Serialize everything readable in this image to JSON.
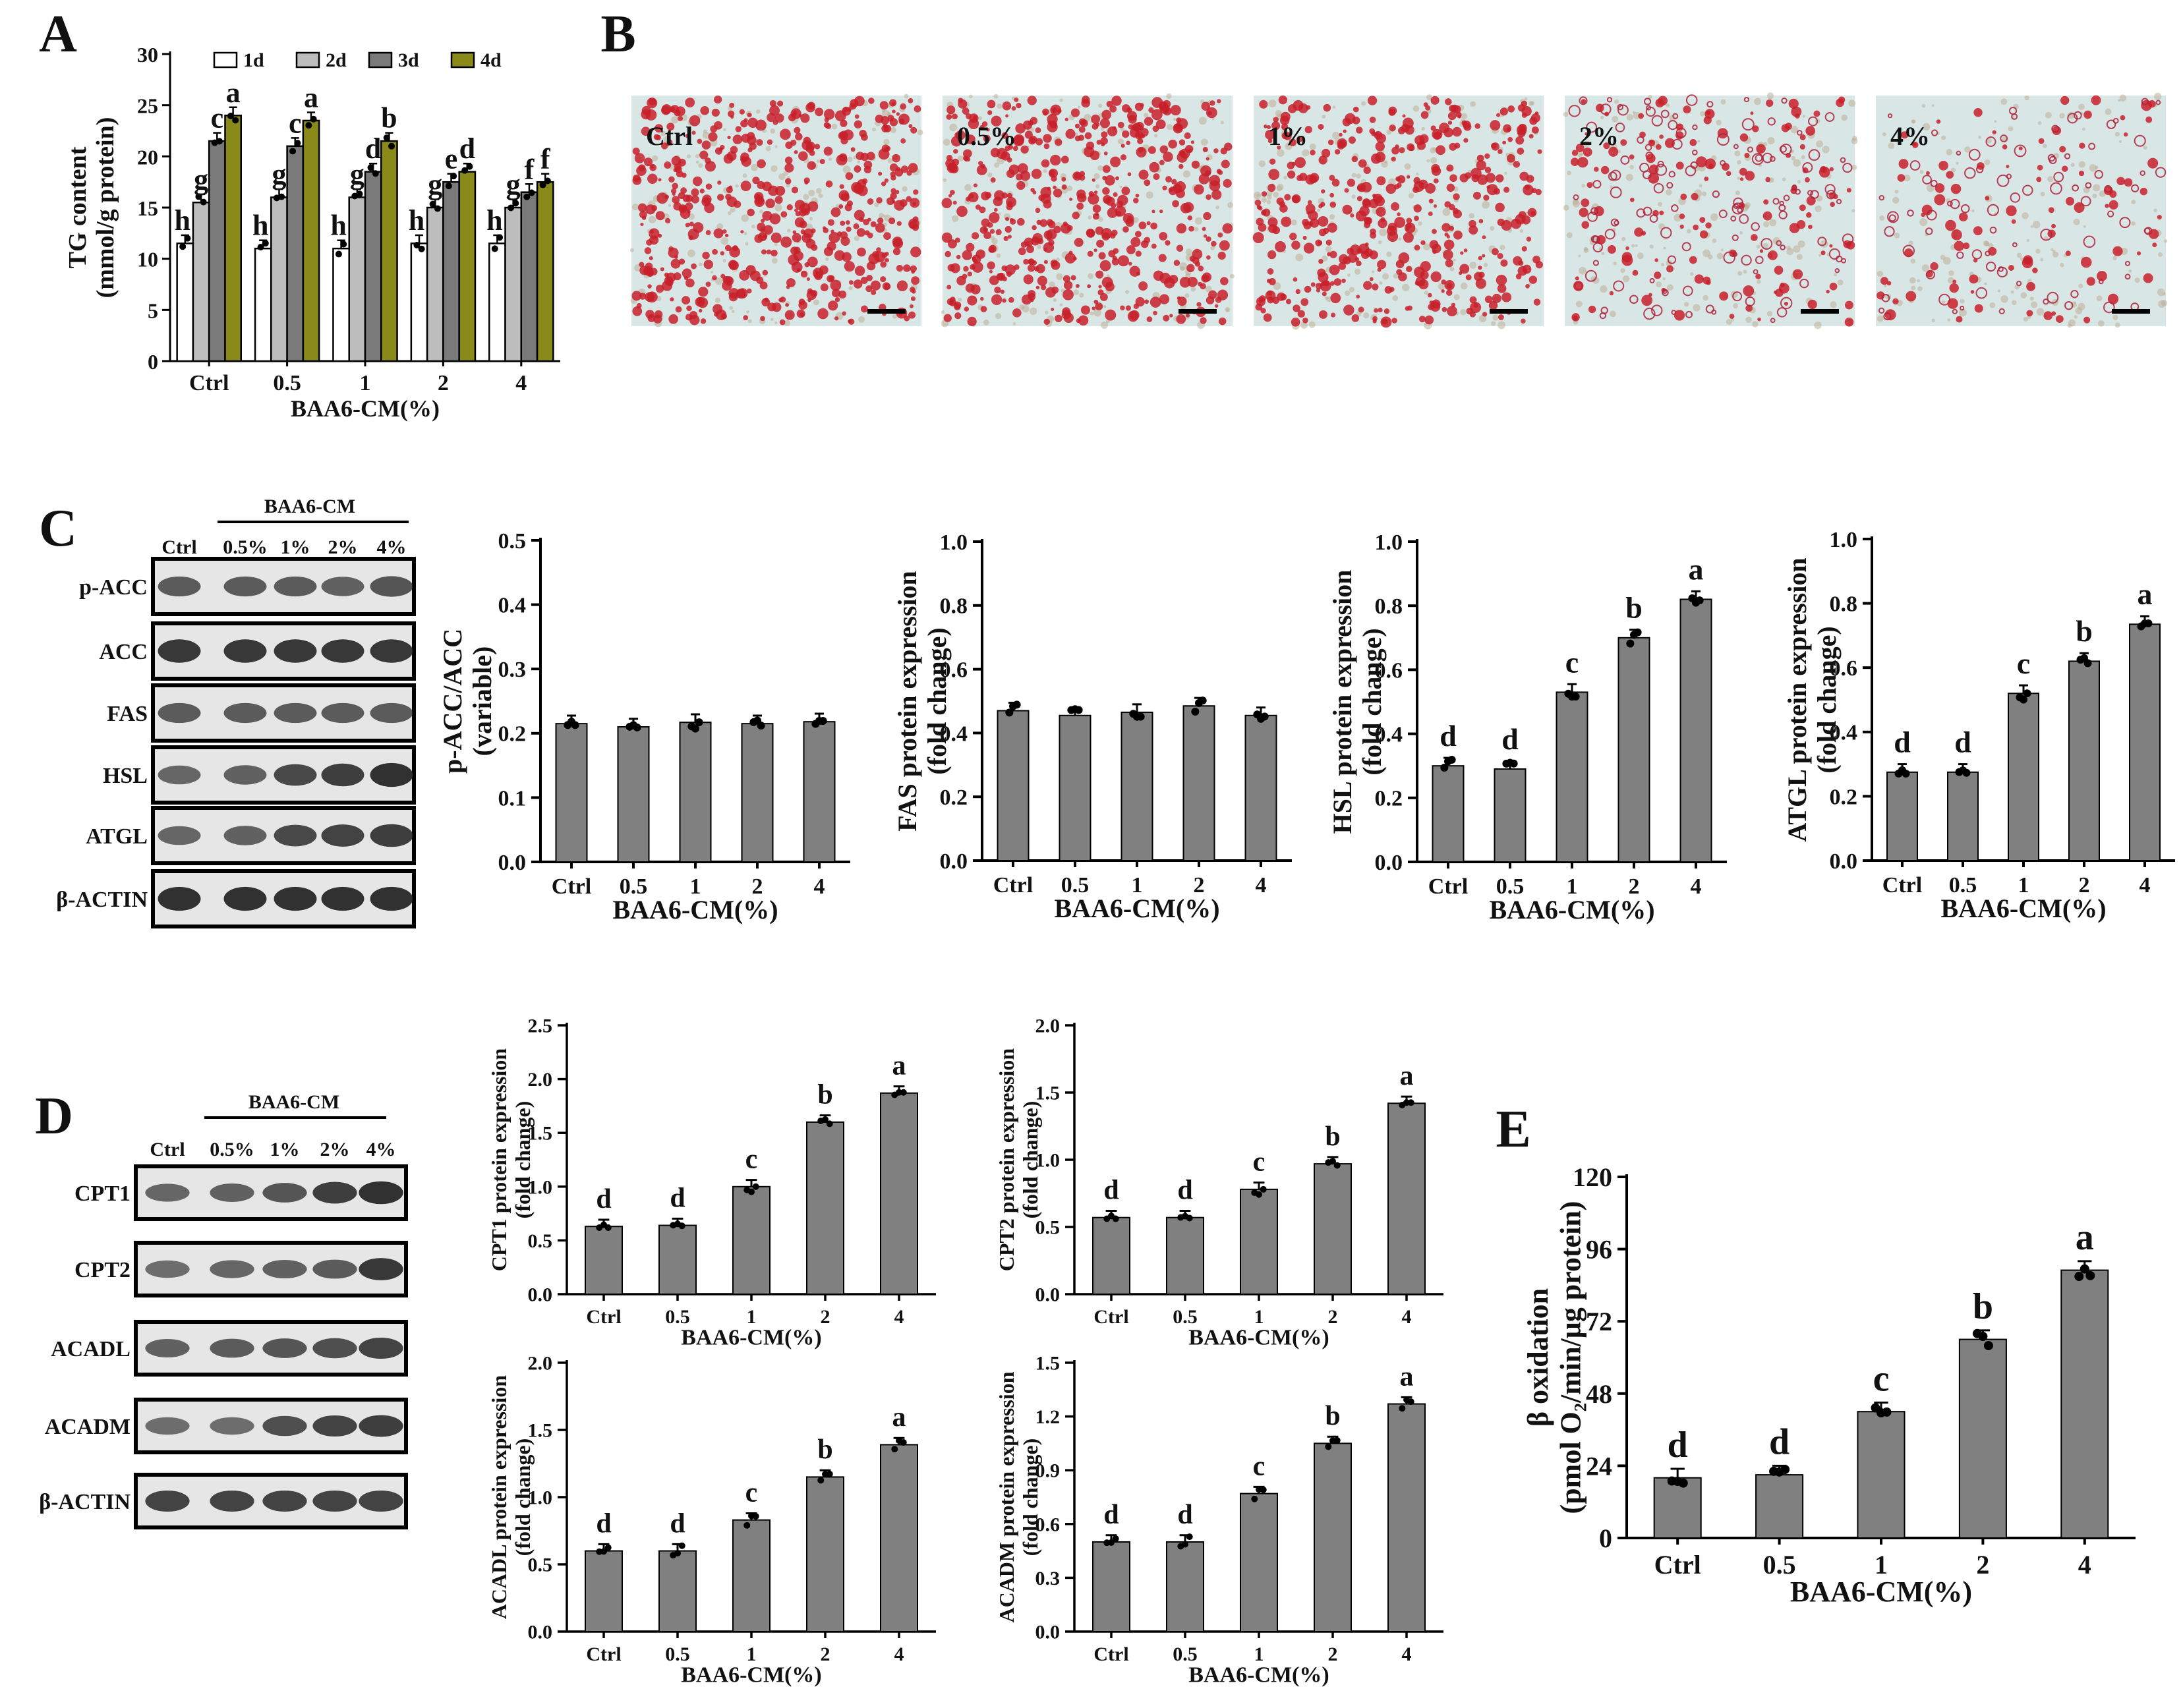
{
  "colors": {
    "bar": "#808080",
    "d1": "#ffffff",
    "d2": "#bdbdbd",
    "d3": "#7a7a7a",
    "d4": "#8a8a1a",
    "stain": "#c8202a",
    "bg": "#d9e6e6",
    "band": "#222222"
  },
  "panels": {
    "A": "A",
    "B": "B",
    "C": "C",
    "D": "D",
    "E": "E"
  },
  "panelB": {
    "labels": [
      "Ctrl",
      "0.5%",
      "1%",
      "2%",
      "4%"
    ],
    "density": [
      1.0,
      1.0,
      0.85,
      0.55,
      0.35
    ]
  },
  "panelC": {
    "header": "BAA6-CM",
    "lanes": [
      "Ctrl",
      "0.5%",
      "1%",
      "2%",
      "4%"
    ],
    "blots": [
      {
        "name": "p-ACC",
        "intensity": [
          0.6,
          0.6,
          0.6,
          0.55,
          0.65
        ]
      },
      {
        "name": "ACC",
        "intensity": [
          0.9,
          0.9,
          0.9,
          0.9,
          0.9
        ]
      },
      {
        "name": "FAS",
        "intensity": [
          0.6,
          0.6,
          0.6,
          0.6,
          0.6
        ]
      },
      {
        "name": "HSL",
        "intensity": [
          0.5,
          0.55,
          0.75,
          0.85,
          0.95
        ]
      },
      {
        "name": "ATGL",
        "intensity": [
          0.5,
          0.55,
          0.75,
          0.8,
          0.85
        ]
      },
      {
        "name": "β-ACTIN",
        "intensity": [
          0.95,
          0.95,
          0.95,
          0.95,
          0.95
        ]
      }
    ]
  },
  "panelD": {
    "header": "BAA6-CM",
    "lanes": [
      "Ctrl",
      "0.5%",
      "1%",
      "2%",
      "4%"
    ],
    "blots": [
      {
        "name": "CPT1",
        "intensity": [
          0.5,
          0.55,
          0.65,
          0.85,
          0.95
        ]
      },
      {
        "name": "CPT2",
        "intensity": [
          0.45,
          0.5,
          0.55,
          0.6,
          0.9
        ]
      },
      {
        "name": "ACADL",
        "intensity": [
          0.55,
          0.6,
          0.65,
          0.7,
          0.8
        ]
      },
      {
        "name": "ACADM",
        "intensity": [
          0.45,
          0.45,
          0.7,
          0.8,
          0.85
        ]
      },
      {
        "name": "β-ACTIN",
        "intensity": [
          0.8,
          0.8,
          0.8,
          0.8,
          0.8
        ]
      }
    ]
  },
  "chart_data": [
    {
      "id": "A",
      "type": "bar",
      "title": "",
      "categories": [
        "Ctrl",
        "0.5",
        "1",
        "2",
        "4"
      ],
      "xlabel": "BAA6-CM(%)",
      "ylabel": [
        "TG content",
        "(mmol/g protein)"
      ],
      "ylim": [
        0,
        30
      ],
      "yticks": [
        0,
        5,
        10,
        15,
        20,
        25,
        30
      ],
      "series": [
        {
          "name": "1d",
          "values": [
            11.5,
            11,
            11,
            11.5,
            11.5
          ],
          "letters": [
            "h",
            "h",
            "h",
            "h",
            "h"
          ]
        },
        {
          "name": "2d",
          "values": [
            15.5,
            16,
            16,
            15,
            15
          ],
          "letters": [
            "g",
            "g",
            "g",
            "g",
            "g"
          ]
        },
        {
          "name": "3d",
          "values": [
            21.5,
            21,
            18.5,
            17.5,
            16.5
          ],
          "letters": [
            "c",
            "c",
            "d",
            "e",
            "f"
          ]
        },
        {
          "name": "4d",
          "values": [
            24,
            23.5,
            21.5,
            18.5,
            17.5
          ],
          "letters": [
            "a",
            "a",
            "b",
            "d",
            "f"
          ]
        }
      ]
    },
    {
      "id": "pACC",
      "type": "bar",
      "categories": [
        "Ctrl",
        "0.5",
        "1",
        "2",
        "4"
      ],
      "values": [
        0.215,
        0.21,
        0.217,
        0.215,
        0.218
      ],
      "letters": [],
      "xlabel": "BAA6-CM(%)",
      "ylabel": [
        "p-ACC/ACC",
        "(variable)"
      ],
      "ylim": [
        0,
        0.5
      ],
      "yticks": [
        0.0,
        0.1,
        0.2,
        0.3,
        0.4,
        0.5
      ],
      "tickDigits": 1
    },
    {
      "id": "FAS",
      "type": "bar",
      "categories": [
        "Ctrl",
        "0.5",
        "1",
        "2",
        "4"
      ],
      "values": [
        0.47,
        0.455,
        0.465,
        0.485,
        0.455
      ],
      "letters": [],
      "xlabel": "BAA6-CM(%)",
      "ylabel": [
        "FAS protein expression",
        "(fold change)"
      ],
      "ylim": [
        0,
        1.0
      ],
      "yticks": [
        0.0,
        0.2,
        0.4,
        0.6,
        0.8,
        1.0
      ],
      "tickDigits": 1
    },
    {
      "id": "HSL",
      "type": "bar",
      "categories": [
        "Ctrl",
        "0.5",
        "1",
        "2",
        "4"
      ],
      "values": [
        0.3,
        0.29,
        0.53,
        0.7,
        0.82
      ],
      "letters": [
        "d",
        "d",
        "c",
        "b",
        "a"
      ],
      "xlabel": "BAA6-CM(%)",
      "ylabel": [
        "HSL protein expression",
        "(fold change)"
      ],
      "ylim": [
        0,
        1.0
      ],
      "yticks": [
        0.0,
        0.2,
        0.4,
        0.6,
        0.8,
        1.0
      ],
      "tickDigits": 1
    },
    {
      "id": "ATGL",
      "type": "bar",
      "categories": [
        "Ctrl",
        "0.5",
        "1",
        "2",
        "4"
      ],
      "values": [
        0.275,
        0.275,
        0.52,
        0.62,
        0.735
      ],
      "letters": [
        "d",
        "d",
        "c",
        "b",
        "a"
      ],
      "xlabel": "BAA6-CM(%)",
      "ylabel": [
        "ATGL protein expression",
        "(fold change)"
      ],
      "ylim": [
        0,
        1.0
      ],
      "yticks": [
        0.0,
        0.2,
        0.4,
        0.6,
        0.8,
        1.0
      ],
      "tickDigits": 1
    },
    {
      "id": "CPT1",
      "type": "bar",
      "categories": [
        "Ctrl",
        "0.5",
        "1",
        "2",
        "4"
      ],
      "values": [
        0.63,
        0.64,
        1.0,
        1.6,
        1.87
      ],
      "letters": [
        "d",
        "d",
        "c",
        "b",
        "a"
      ],
      "xlabel": "BAA6-CM(%)",
      "ylabel": [
        "CPT1 protein expression",
        "(fold change)"
      ],
      "ylim": [
        0,
        2.5
      ],
      "yticks": [
        0.0,
        0.5,
        1.0,
        1.5,
        2.0,
        2.5
      ],
      "tickDigits": 1
    },
    {
      "id": "CPT2",
      "type": "bar",
      "categories": [
        "Ctrl",
        "0.5",
        "1",
        "2",
        "4"
      ],
      "values": [
        0.57,
        0.57,
        0.78,
        0.97,
        1.42
      ],
      "letters": [
        "d",
        "d",
        "c",
        "b",
        "a"
      ],
      "xlabel": "BAA6-CM(%)",
      "ylabel": [
        "CPT2 protein expression",
        "(fold change)"
      ],
      "ylim": [
        0,
        2.0
      ],
      "yticks": [
        0.0,
        0.5,
        1.0,
        1.5,
        2.0
      ],
      "tickDigits": 1
    },
    {
      "id": "ACADL",
      "type": "bar",
      "categories": [
        "Ctrl",
        "0.5",
        "1",
        "2",
        "4"
      ],
      "values": [
        0.6,
        0.6,
        0.83,
        1.15,
        1.39
      ],
      "letters": [
        "d",
        "d",
        "c",
        "b",
        "a"
      ],
      "xlabel": "BAA6-CM(%)",
      "ylabel": [
        "ACADL protein expression",
        "(fold change)"
      ],
      "ylim": [
        0,
        2.0
      ],
      "yticks": [
        0.0,
        0.5,
        1.0,
        1.5,
        2.0
      ],
      "tickDigits": 1
    },
    {
      "id": "ACADM",
      "type": "bar",
      "categories": [
        "Ctrl",
        "0.5",
        "1",
        "2",
        "4"
      ],
      "values": [
        0.5,
        0.5,
        0.77,
        1.05,
        1.27
      ],
      "letters": [
        "d",
        "d",
        "c",
        "b",
        "a"
      ],
      "xlabel": "BAA6-CM(%)",
      "ylabel": [
        "ACADM protein expression",
        "(fold change)"
      ],
      "ylim": [
        0,
        1.5
      ],
      "yticks": [
        0.0,
        0.3,
        0.6,
        0.9,
        1.2,
        1.5
      ],
      "tickDigits": 1
    },
    {
      "id": "E",
      "type": "bar",
      "categories": [
        "Ctrl",
        "0.5",
        "1",
        "2",
        "4"
      ],
      "values": [
        20,
        21,
        42,
        66,
        89
      ],
      "letters": [
        "d",
        "d",
        "c",
        "b",
        "a"
      ],
      "xlabel": "BAA6-CM(%)",
      "ylabel": [
        "β oxidation",
        "(pmol O₂/min/μg protein)"
      ],
      "ylim": [
        0,
        120
      ],
      "yticks": [
        0,
        24,
        48,
        72,
        96,
        120
      ],
      "tickDigits": 0
    }
  ]
}
